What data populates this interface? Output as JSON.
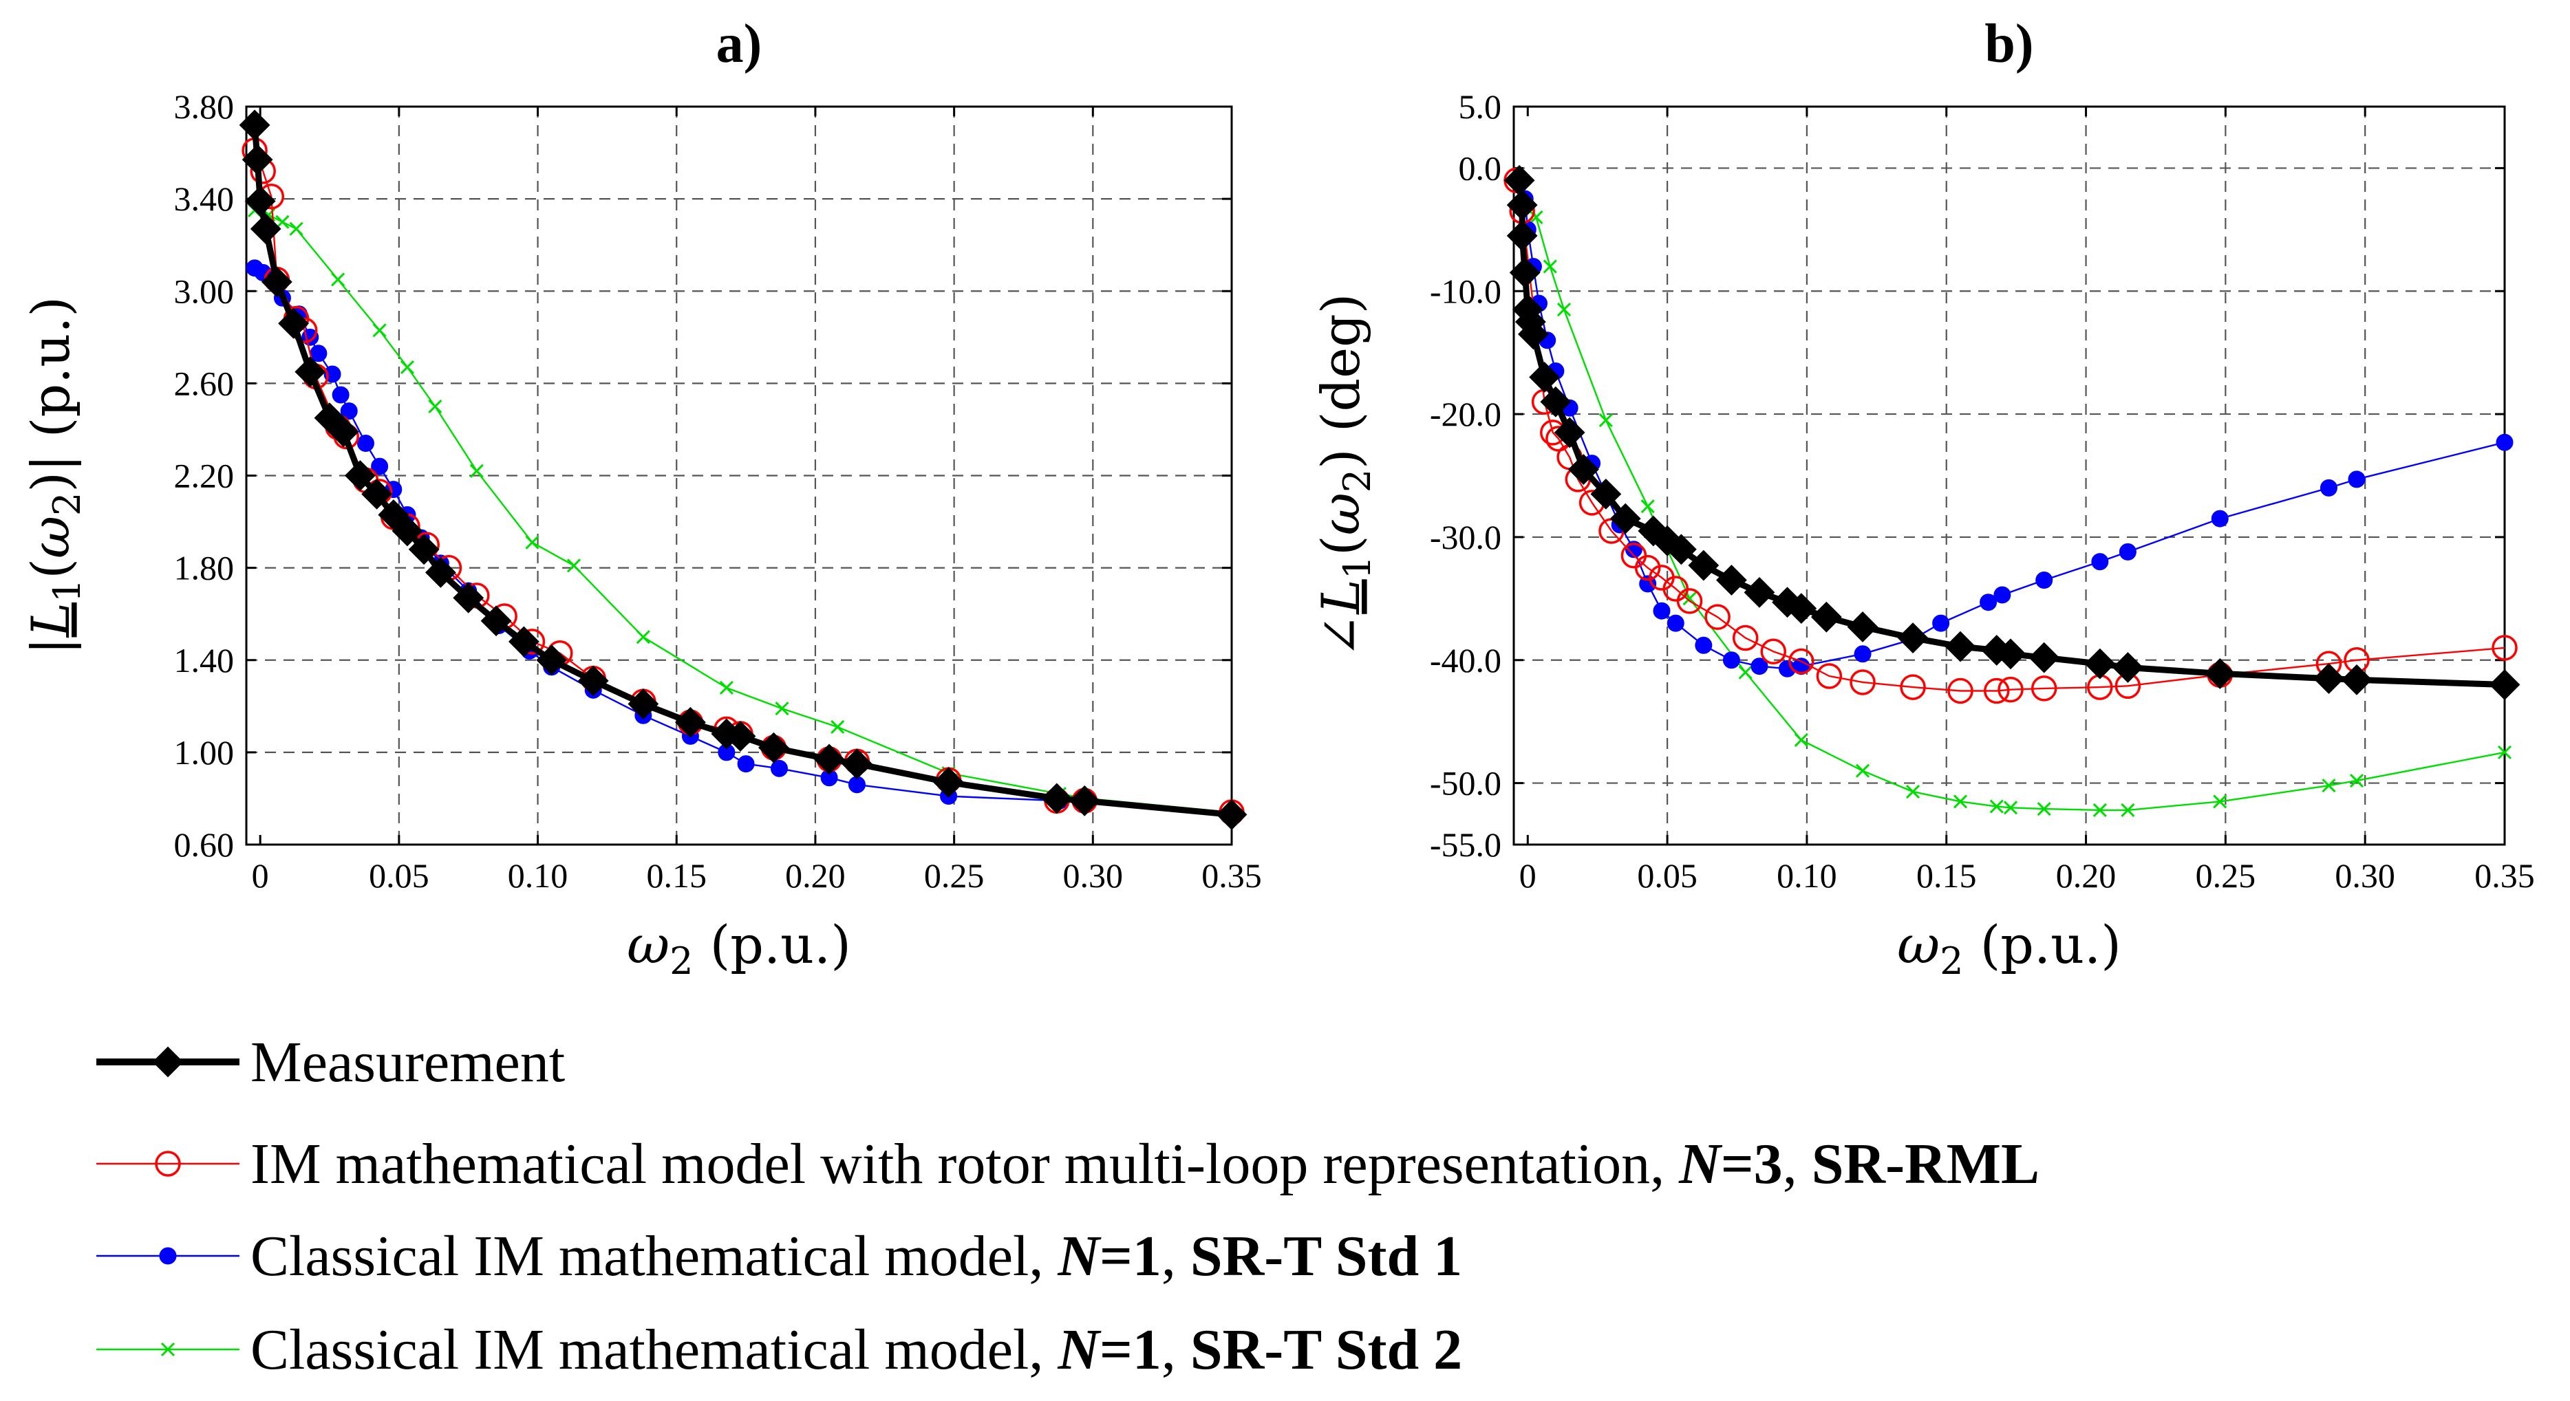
{
  "legend": [
    {
      "id": "meas",
      "parts": [
        {
          "t": "Measurement",
          "s": "n"
        }
      ]
    },
    {
      "id": "srrml",
      "parts": [
        {
          "t": "IM mathematical model with rotor multi-loop representation, ",
          "s": "n"
        },
        {
          "t": "N",
          "s": "bi"
        },
        {
          "t": "=3",
          "s": "b"
        },
        {
          "t": ", ",
          "s": "n"
        },
        {
          "t": "SR-RML",
          "s": "b"
        }
      ]
    },
    {
      "id": "std1",
      "parts": [
        {
          "t": "Classical IM mathematical model, ",
          "s": "n"
        },
        {
          "t": "N",
          "s": "bi"
        },
        {
          "t": "=1",
          "s": "b"
        },
        {
          "t": ", ",
          "s": "n"
        },
        {
          "t": "SR-T Std 1",
          "s": "b"
        }
      ]
    },
    {
      "id": "std2",
      "parts": [
        {
          "t": "Classical IM mathematical model, ",
          "s": "n"
        },
        {
          "t": "N",
          "s": "bi"
        },
        {
          "t": "=1",
          "s": "b"
        },
        {
          "t": ", ",
          "s": "n"
        },
        {
          "t": "SR-T Std 2",
          "s": "b"
        }
      ]
    }
  ],
  "styles": {
    "meas": {
      "color": "#000000",
      "marker": "diamond",
      "line": "thick"
    },
    "srrml": {
      "color": "#ff0000",
      "marker": "open-circle",
      "line": "thin"
    },
    "std1": {
      "color": "#0000ff",
      "marker": "filled-circle",
      "line": "thin"
    },
    "std2": {
      "color": "#00dd00",
      "marker": "x",
      "line": "thin"
    }
  },
  "chart_data": [
    {
      "type": "line",
      "title": "a)",
      "xlabel": "ω2 (p.u.)",
      "ylabel": "|L1(ω2)| (p.u.)",
      "xlim": [
        -0.005,
        0.35
      ],
      "ylim": [
        0.6,
        3.8
      ],
      "xticks": [
        0,
        0.05,
        0.1,
        0.15,
        0.2,
        0.25,
        0.3,
        0.35
      ],
      "xticklabels": [
        "0",
        "0.05",
        "0.10",
        "0.15",
        "0.20",
        "0.25",
        "0.30",
        "0.35"
      ],
      "yticks": [
        0.6,
        1.0,
        1.4,
        1.8,
        2.2,
        2.6,
        3.0,
        3.4,
        3.8
      ],
      "yticklabels": [
        "0.60",
        "1.00",
        "1.40",
        "1.80",
        "2.20",
        "2.60",
        "3.00",
        "3.40",
        "3.80"
      ],
      "grid": true,
      "series": [
        {
          "name": "Measurement",
          "key": "meas",
          "x": [
            -0.002,
            -0.001,
            0.0,
            0.002,
            0.006,
            0.012,
            0.018,
            0.025,
            0.03,
            0.036,
            0.042,
            0.048,
            0.053,
            0.059,
            0.065,
            0.075,
            0.085,
            0.095,
            0.105,
            0.12,
            0.138,
            0.155,
            0.168,
            0.173,
            0.185,
            0.205,
            0.215,
            0.248,
            0.287,
            0.297,
            0.35
          ],
          "y": [
            3.72,
            3.57,
            3.39,
            3.27,
            3.04,
            2.86,
            2.65,
            2.45,
            2.39,
            2.2,
            2.12,
            2.03,
            1.96,
            1.88,
            1.78,
            1.67,
            1.57,
            1.48,
            1.4,
            1.31,
            1.21,
            1.13,
            1.08,
            1.07,
            1.02,
            0.97,
            0.95,
            0.87,
            0.8,
            0.79,
            0.73
          ]
        },
        {
          "name": "IM mathematical model with rotor multi-loop representation, N=3, SR-RML",
          "key": "srrml",
          "x": [
            -0.002,
            0.001,
            0.004,
            0.006,
            0.013,
            0.016,
            0.02,
            0.028,
            0.031,
            0.038,
            0.043,
            0.048,
            0.053,
            0.06,
            0.068,
            0.078,
            0.088,
            0.098,
            0.108,
            0.12,
            0.138,
            0.155,
            0.168,
            0.173,
            0.185,
            0.205,
            0.215,
            0.248,
            0.287,
            0.297,
            0.35
          ],
          "y": [
            3.61,
            3.52,
            3.41,
            3.05,
            2.88,
            2.83,
            2.63,
            2.41,
            2.37,
            2.18,
            2.13,
            2.02,
            1.98,
            1.9,
            1.8,
            1.68,
            1.59,
            1.48,
            1.43,
            1.32,
            1.22,
            1.13,
            1.1,
            1.08,
            1.02,
            0.97,
            0.96,
            0.88,
            0.79,
            0.79,
            0.74
          ]
        },
        {
          "name": "Classical IM mathematical model, N=1, SR-T Std 1",
          "key": "std1",
          "x": [
            -0.002,
            0.001,
            0.004,
            0.008,
            0.014,
            0.018,
            0.021,
            0.026,
            0.029,
            0.032,
            0.038,
            0.043,
            0.048,
            0.053,
            0.058,
            0.065,
            0.075,
            0.086,
            0.097,
            0.105,
            0.12,
            0.138,
            0.155,
            0.168,
            0.175,
            0.187,
            0.205,
            0.215,
            0.248,
            0.288,
            0.298,
            0.35
          ],
          "y": [
            3.1,
            3.08,
            3.05,
            2.97,
            2.9,
            2.8,
            2.73,
            2.64,
            2.55,
            2.48,
            2.34,
            2.24,
            2.14,
            2.03,
            1.93,
            1.82,
            1.7,
            1.55,
            1.44,
            1.37,
            1.27,
            1.16,
            1.07,
            1.0,
            0.95,
            0.93,
            0.89,
            0.86,
            0.81,
            0.79,
            0.78,
            0.74
          ]
        },
        {
          "name": "Classical IM mathematical model, N=1, SR-T Std 2",
          "key": "std2",
          "x": [
            -0.002,
            0.003,
            0.008,
            0.013,
            0.028,
            0.043,
            0.053,
            0.063,
            0.078,
            0.098,
            0.113,
            0.138,
            0.168,
            0.188,
            0.208,
            0.248,
            0.288,
            0.298,
            0.35
          ],
          "y": [
            3.35,
            3.33,
            3.3,
            3.27,
            3.05,
            2.83,
            2.67,
            2.5,
            2.22,
            1.91,
            1.81,
            1.5,
            1.28,
            1.19,
            1.11,
            0.91,
            0.82,
            0.8,
            0.74
          ]
        }
      ]
    },
    {
      "type": "line",
      "title": "b)",
      "xlabel": "ω2 (p.u.)",
      "ylabel": "∠L1(ω2) (deg)",
      "xlim": [
        -0.005,
        0.35
      ],
      "ylim": [
        -55,
        5
      ],
      "xticks": [
        0,
        0.05,
        0.1,
        0.15,
        0.2,
        0.25,
        0.3,
        0.35
      ],
      "xticklabels": [
        "0",
        "0.05",
        "0.10",
        "0.15",
        "0.20",
        "0.25",
        "0.30",
        "0.35"
      ],
      "yticks": [
        5,
        0,
        -10,
        -20,
        -30,
        -40,
        -50,
        -55
      ],
      "yticklabels": [
        "5.0",
        "0.0",
        "-10.0",
        "-20.0",
        "-30.0",
        "-40.0",
        "-50.0",
        "-55.0"
      ],
      "grid": true,
      "series": [
        {
          "name": "Measurement",
          "key": "meas",
          "x": [
            -0.003,
            -0.002,
            -0.002,
            -0.001,
            0.0,
            0.001,
            0.002,
            0.006,
            0.01,
            0.015,
            0.02,
            0.028,
            0.035,
            0.045,
            0.05,
            0.055,
            0.063,
            0.073,
            0.083,
            0.093,
            0.098,
            0.107,
            0.12,
            0.138,
            0.155,
            0.168,
            0.173,
            0.185,
            0.205,
            0.215,
            0.248,
            0.287,
            0.297,
            0.35
          ],
          "y": [
            -1,
            -3,
            -5.5,
            -8.5,
            -11.5,
            -12.5,
            -13.5,
            -17,
            -19,
            -21.5,
            -24.5,
            -26.5,
            -28.5,
            -29.5,
            -30.3,
            -31,
            -32.3,
            -33.5,
            -34.5,
            -35.3,
            -35.8,
            -36.5,
            -37.3,
            -38.2,
            -38.9,
            -39.2,
            -39.5,
            -39.8,
            -40.3,
            -40.6,
            -41.1,
            -41.5,
            -41.6,
            -42
          ]
        },
        {
          "name": "IM mathematical model with rotor multi-loop representation, N=3, SR-RML",
          "key": "srrml",
          "x": [
            -0.004,
            -0.002,
            0.006,
            0.009,
            0.011,
            0.015,
            0.018,
            0.023,
            0.03,
            0.038,
            0.043,
            0.048,
            0.053,
            0.058,
            0.068,
            0.078,
            0.088,
            0.098,
            0.108,
            0.12,
            0.138,
            0.155,
            0.168,
            0.173,
            0.185,
            0.205,
            0.215,
            0.248,
            0.287,
            0.297,
            0.35
          ],
          "y": [
            -1,
            -3.5,
            -19,
            -21.5,
            -22,
            -23.5,
            -25.3,
            -27.2,
            -29.5,
            -31.5,
            -32.5,
            -33.3,
            -34.2,
            -35.2,
            -36.5,
            -38.2,
            -39.3,
            -40.1,
            -41.3,
            -41.8,
            -42.2,
            -42.5,
            -42.5,
            -42.4,
            -42.3,
            -42.2,
            -42.1,
            -41.2,
            -40.3,
            -40,
            -39
          ]
        },
        {
          "name": "Classical IM mathematical model, N=1, SR-T Std 1",
          "key": "std1",
          "x": [
            -0.002,
            -0.001,
            0.0,
            0.002,
            0.004,
            0.007,
            0.01,
            0.015,
            0.023,
            0.028,
            0.033,
            0.038,
            0.043,
            0.048,
            0.053,
            0.063,
            0.073,
            0.083,
            0.093,
            0.098,
            0.12,
            0.138,
            0.148,
            0.165,
            0.17,
            0.185,
            0.205,
            0.215,
            0.248,
            0.287,
            0.297,
            0.35
          ],
          "y": [
            -1,
            -2.5,
            -5,
            -8,
            -11,
            -14,
            -16.5,
            -19.5,
            -24,
            -26.5,
            -29,
            -31,
            -33.8,
            -36,
            -37,
            -38.8,
            -40,
            -40.5,
            -40.7,
            -40.5,
            -39.5,
            -38.3,
            -37,
            -35.3,
            -34.7,
            -33.5,
            -32,
            -31.2,
            -28.5,
            -26,
            -25.3,
            -22.3
          ]
        },
        {
          "name": "Classical IM mathematical model, N=1, SR-T Std 2",
          "key": "std2",
          "x": [
            -0.003,
            0.003,
            0.008,
            0.013,
            0.028,
            0.043,
            0.058,
            0.078,
            0.098,
            0.12,
            0.138,
            0.155,
            0.168,
            0.173,
            0.185,
            0.205,
            0.215,
            0.248,
            0.287,
            0.297,
            0.35
          ],
          "y": [
            -1,
            -4,
            -8,
            -11.5,
            -20.5,
            -27.5,
            -35,
            -41,
            -46.5,
            -49,
            -50.7,
            -51.5,
            -51.9,
            -52,
            -52.1,
            -52.2,
            -52.2,
            -51.5,
            -50.2,
            -49.8,
            -47.5
          ]
        }
      ]
    }
  ]
}
